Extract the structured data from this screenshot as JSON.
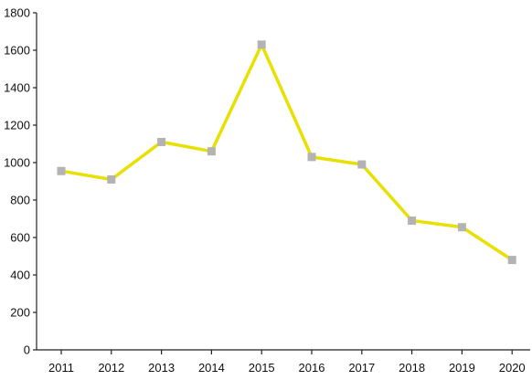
{
  "chart_data": {
    "type": "line",
    "categories": [
      "2011",
      "2012",
      "2013",
      "2014",
      "2015",
      "2016",
      "2017",
      "2018",
      "2019",
      "2020"
    ],
    "series": [
      {
        "values": [
          955,
          910,
          1110,
          1060,
          1630,
          1030,
          990,
          690,
          655,
          480
        ]
      }
    ],
    "ylim": [
      0,
      1800
    ],
    "yticks": [
      0,
      200,
      400,
      600,
      800,
      1000,
      1200,
      1400,
      1600,
      1800
    ],
    "grid": false,
    "legend": "none",
    "colors": {
      "line": "#e8e000",
      "marker": "#b3b3b3",
      "axis": "#222222"
    }
  }
}
